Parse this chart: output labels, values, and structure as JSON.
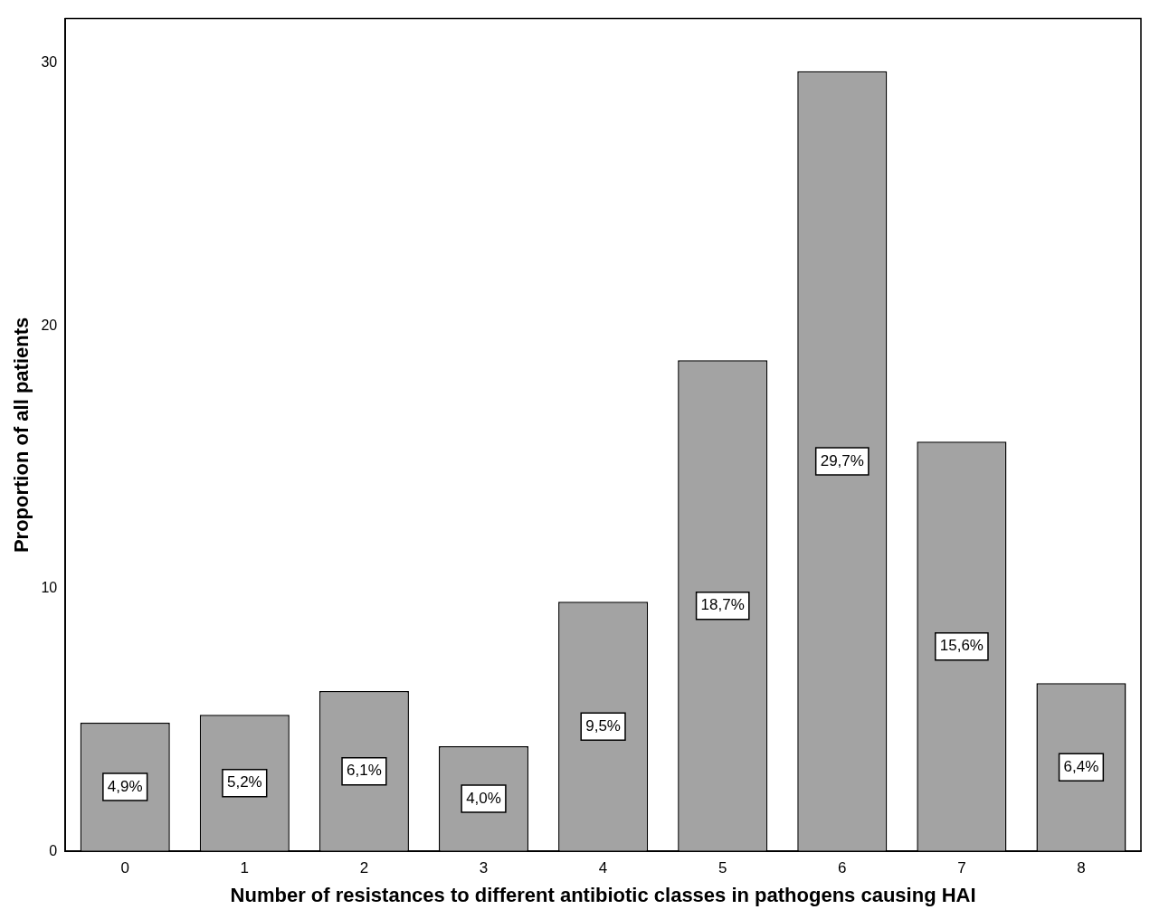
{
  "chart_data": {
    "type": "bar",
    "xlabel": "Number of resistances to different antibiotic classes in pathogens causing HAI",
    "ylabel": "Proportion of all patients",
    "categories": [
      "0",
      "1",
      "2",
      "3",
      "4",
      "5",
      "6",
      "7",
      "8"
    ],
    "values": [
      4.9,
      5.2,
      6.1,
      4.0,
      9.5,
      18.7,
      29.7,
      15.6,
      6.4
    ],
    "value_labels": [
      "4,9%",
      "5,2%",
      "6,1%",
      "4,0%",
      "9,5%",
      "18,7%",
      "29,7%",
      "15,6%",
      "6,4%"
    ],
    "color": "#a3a3a3",
    "ylim": [
      0,
      31.7
    ],
    "yticks": [
      0,
      10,
      20,
      30
    ],
    "grid": false,
    "legend": false
  }
}
